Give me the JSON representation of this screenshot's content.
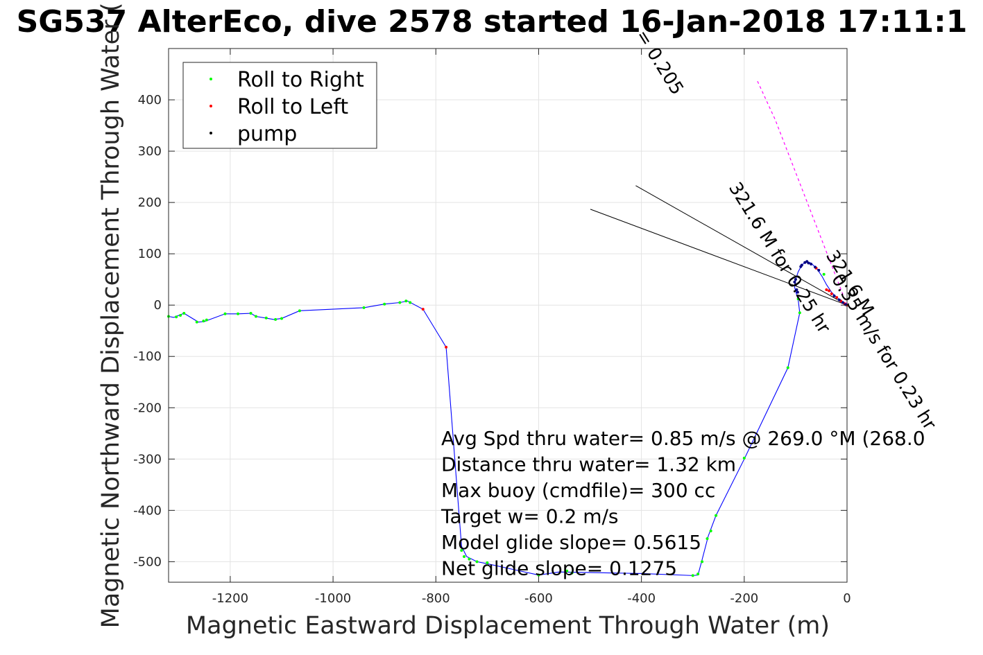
{
  "chart_data": {
    "type": "scatter",
    "title": "SG537 AlterEco, dive 2578 started 16-Jan-2018 17:11:1",
    "xlabel": "Magnetic Eastward Displacement Through Water (m)",
    "ylabel": "Magnetic Northward Displacement Through Water (",
    "xlim": [
      -1320,
      0
    ],
    "ylim": [
      -540,
      500
    ],
    "xticks": [
      -1200,
      -1000,
      -800,
      -600,
      -400,
      -200,
      0
    ],
    "yticks": [
      -500,
      -400,
      -300,
      -200,
      -100,
      0,
      100,
      200,
      300,
      400
    ],
    "grid": true,
    "legend_position": "top-left",
    "legend": [
      {
        "label": "Roll to Right",
        "color": "#00ff00"
      },
      {
        "label": "Roll to Left",
        "color": "#ff0000"
      },
      {
        "label": "pump",
        "color": "#000000"
      }
    ],
    "track": {
      "color": "#0000ff",
      "points": [
        [
          0,
          0
        ],
        [
          -10,
          8
        ],
        [
          -20,
          15
        ],
        [
          -30,
          25
        ],
        [
          -40,
          40
        ],
        [
          -48,
          55
        ],
        [
          -58,
          70
        ],
        [
          -70,
          82
        ],
        [
          -80,
          85
        ],
        [
          -88,
          78
        ],
        [
          -95,
          65
        ],
        [
          -100,
          50
        ],
        [
          -102,
          35
        ],
        [
          -98,
          20
        ],
        [
          -95,
          10
        ],
        [
          -92,
          -15
        ],
        [
          -115,
          -122
        ],
        [
          -200,
          -300
        ],
        [
          -255,
          -410
        ],
        [
          -270,
          -450
        ],
        [
          -283,
          -500
        ],
        [
          -290,
          -526
        ],
        [
          -300,
          -527
        ],
        [
          -400,
          -523
        ],
        [
          -560,
          -520
        ],
        [
          -600,
          -526
        ],
        [
          -650,
          -515
        ],
        [
          -700,
          -504
        ],
        [
          -720,
          -500
        ],
        [
          -740,
          -490
        ],
        [
          -750,
          -470
        ],
        [
          -780,
          -82
        ],
        [
          -825,
          -8
        ],
        [
          -855,
          8
        ],
        [
          -870,
          5
        ],
        [
          -900,
          2
        ],
        [
          -940,
          -5
        ],
        [
          -1065,
          -11
        ],
        [
          -1100,
          -26
        ],
        [
          -1115,
          -28
        ],
        [
          -1150,
          -22
        ],
        [
          -1160,
          -16
        ],
        [
          -1185,
          -17
        ],
        [
          -1210,
          -17
        ],
        [
          -1245,
          -30
        ],
        [
          -1250,
          -32
        ],
        [
          -1262,
          -33
        ],
        [
          -1290,
          -16
        ],
        [
          -1300,
          -20
        ],
        [
          -1310,
          -24
        ],
        [
          -1320,
          -22
        ]
      ]
    },
    "series": [
      {
        "name": "Roll to Right",
        "color": "#00ff00",
        "points": [
          [
            -1320,
            -22
          ],
          [
            -1305,
            -23
          ],
          [
            -1297,
            -20
          ],
          [
            -1290,
            -16
          ],
          [
            -1265,
            -33
          ],
          [
            -1252,
            -31
          ],
          [
            -1246,
            -29
          ],
          [
            -1210,
            -17
          ],
          [
            -1185,
            -17
          ],
          [
            -1160,
            -16
          ],
          [
            -1150,
            -22
          ],
          [
            -1130,
            -25
          ],
          [
            -1112,
            -28
          ],
          [
            -1100,
            -26
          ],
          [
            -1065,
            -11
          ],
          [
            -940,
            -5
          ],
          [
            -900,
            2
          ],
          [
            -870,
            5
          ],
          [
            -858,
            8
          ],
          [
            -850,
            5
          ],
          [
            -750,
            -478
          ],
          [
            -745,
            -490
          ],
          [
            -735,
            -495
          ],
          [
            -720,
            -500
          ],
          [
            -700,
            -502
          ],
          [
            -600,
            -526
          ],
          [
            -545,
            -518
          ],
          [
            -535,
            -522
          ],
          [
            -300,
            -527
          ],
          [
            -290,
            -524
          ],
          [
            -282,
            -500
          ],
          [
            -272,
            -455
          ],
          [
            -265,
            -440
          ],
          [
            -255,
            -410
          ],
          [
            -200,
            -298
          ],
          [
            -115,
            -122
          ],
          [
            -92,
            -15
          ],
          [
            -95,
            12
          ],
          [
            -45,
            60
          ]
        ]
      },
      {
        "name": "Roll to Left",
        "color": "#ff0000",
        "points": [
          [
            -825,
            -8
          ],
          [
            -780,
            -82
          ],
          [
            -40,
            30
          ],
          [
            -30,
            22
          ],
          [
            -20,
            15
          ],
          [
            -12,
            8
          ],
          [
            -5,
            3
          ],
          [
            0,
            0
          ],
          [
            -60,
            72
          ],
          [
            -35,
            28
          ]
        ]
      },
      {
        "name": "pump",
        "color": "#000080",
        "points": [
          [
            -100,
            50
          ],
          [
            -102,
            45
          ],
          [
            -100,
            40
          ],
          [
            -98,
            30
          ],
          [
            -96,
            25
          ],
          [
            -90,
            75
          ],
          [
            -88,
            78
          ],
          [
            -82,
            83
          ],
          [
            -78,
            85
          ],
          [
            -75,
            82
          ],
          [
            -70,
            80
          ],
          [
            -62,
            74
          ],
          [
            -55,
            68
          ],
          [
            -25,
            18
          ],
          [
            -15,
            10
          ],
          [
            -8,
            5
          ],
          [
            -3,
            1
          ]
        ]
      }
    ],
    "current_track": {
      "color": "#ff00ff",
      "points": [
        [
          0,
          0
        ],
        [
          -140,
          362
        ],
        [
          -175,
          438
        ]
      ]
    },
    "annotations": [
      "Avg Spd thru water=  0.85 m/s @ 269.0 °M (268.0",
      "Distance thru water=  1.32 km",
      "Max buoy (cmdfile)= 300 cc",
      "Target w= 0.2 m/s",
      "Model glide slope= 0.5615",
      "Net glide slope= 0.1275"
    ],
    "rotated_labels": [
      "0.35 m/s for 0.23 hr",
      "321.6 M",
      "321.6 M for 0.25 hr",
      "= 0.205"
    ],
    "guide_lines": {
      "color": "#000000"
    }
  }
}
